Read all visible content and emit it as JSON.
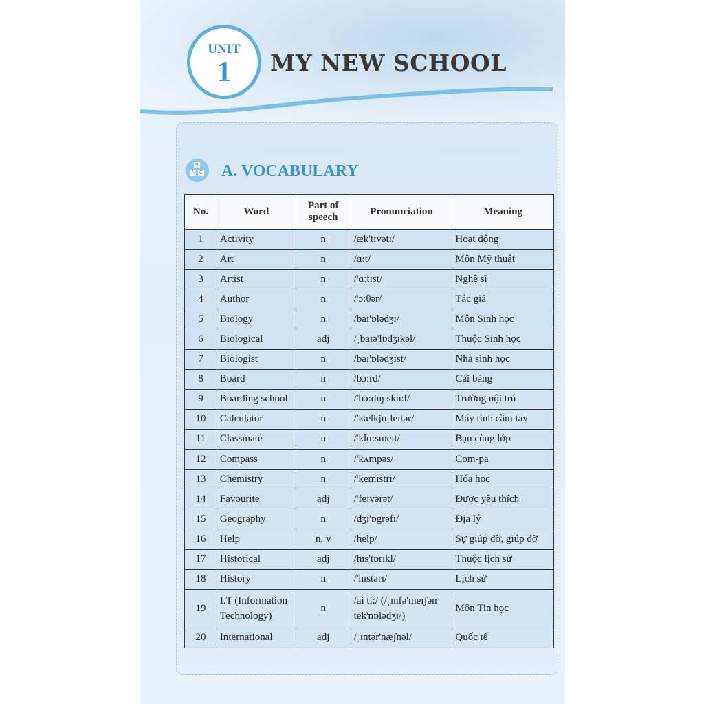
{
  "header": {
    "unit_label": "UNIT",
    "unit_number": "1",
    "title": "MY NEW SCHOOL"
  },
  "section": {
    "icon": "abc-blocks-icon",
    "icon_letters": [
      "B",
      "A",
      "C"
    ],
    "title": "A. VOCABULARY"
  },
  "table": {
    "columns": [
      "No.",
      "Word",
      "Part of speech",
      "Pronunciation",
      "Meaning"
    ],
    "rows": [
      {
        "no": "1",
        "word": "Activity",
        "pos": "n",
        "pron": "/æk'tɪvətɪ/",
        "meaning": "Hoạt động"
      },
      {
        "no": "2",
        "word": "Art",
        "pos": "n",
        "pron": "/ɑ:t/",
        "meaning": "Môn Mỹ thuật"
      },
      {
        "no": "3",
        "word": "Artist",
        "pos": "n",
        "pron": "/'ɑ:tɪst/",
        "meaning": "Nghệ sĩ"
      },
      {
        "no": "4",
        "word": "Author",
        "pos": "n",
        "pron": "/'ɔ:θər/",
        "meaning": "Tác giả"
      },
      {
        "no": "5",
        "word": "Biology",
        "pos": "n",
        "pron": "/baɪ'ɒlədʒɪ/",
        "meaning": "Môn Sinh học"
      },
      {
        "no": "6",
        "word": "Biological",
        "pos": "adj",
        "pron": "/ˌbaɪə'lɒdʒɪkəl/",
        "meaning": "Thuộc Sinh học"
      },
      {
        "no": "7",
        "word": "Biologist",
        "pos": "n",
        "pron": "/baɪ'ɒlədʒɪst/",
        "meaning": "Nhà sinh học"
      },
      {
        "no": "8",
        "word": "Board",
        "pos": "n",
        "pron": "/bɔ:rd/",
        "meaning": "Cái bảng"
      },
      {
        "no": "9",
        "word": "Boarding school",
        "pos": "n",
        "pron": "/'bɔ:dɪŋ sku:l/",
        "meaning": "Trường nội trú"
      },
      {
        "no": "10",
        "word": "Calculator",
        "pos": "n",
        "pron": "/'kælkjuˌleɪtər/",
        "meaning": "Máy tính cầm tay"
      },
      {
        "no": "11",
        "word": "Classmate",
        "pos": "n",
        "pron": "/'klɑ:smeɪt/",
        "meaning": "Bạn cùng lớp"
      },
      {
        "no": "12",
        "word": "Compass",
        "pos": "n",
        "pron": "/'kʌmpəs/",
        "meaning": "Com-pa"
      },
      {
        "no": "13",
        "word": "Chemistry",
        "pos": "n",
        "pron": "/'kemɪstri/",
        "meaning": "Hóa học"
      },
      {
        "no": "14",
        "word": "Favourite",
        "pos": "adj",
        "pron": "/'feɪvərət/",
        "meaning": "Được yêu thích"
      },
      {
        "no": "15",
        "word": "Geography",
        "pos": "n",
        "pron": "/dʒɪ'ɒgrəfɪ/",
        "meaning": "Địa lý"
      },
      {
        "no": "16",
        "word": "Help",
        "pos": "n, v",
        "pron": "/help/",
        "meaning": "Sự giúp đỡ, giúp đỡ"
      },
      {
        "no": "17",
        "word": "Historical",
        "pos": "adj",
        "pron": "/hɪs'tɒrɪkl/",
        "meaning": "Thuộc lịch sử"
      },
      {
        "no": "18",
        "word": "History",
        "pos": "n",
        "pron": "/'hɪstərɪ/",
        "meaning": "Lịch sử"
      },
      {
        "no": "19",
        "word": "I.T (Information Technology)",
        "pos": "n",
        "pron": "/ai ti:/ (/ˌɪnfə'meɪʃən tek'nɒlədʒɪ/)",
        "meaning": "Môn Tin học"
      },
      {
        "no": "20",
        "word": "International",
        "pos": "adj",
        "pron": "/ˌɪntər'næʃnəl/",
        "meaning": "Quốc tế"
      }
    ]
  }
}
